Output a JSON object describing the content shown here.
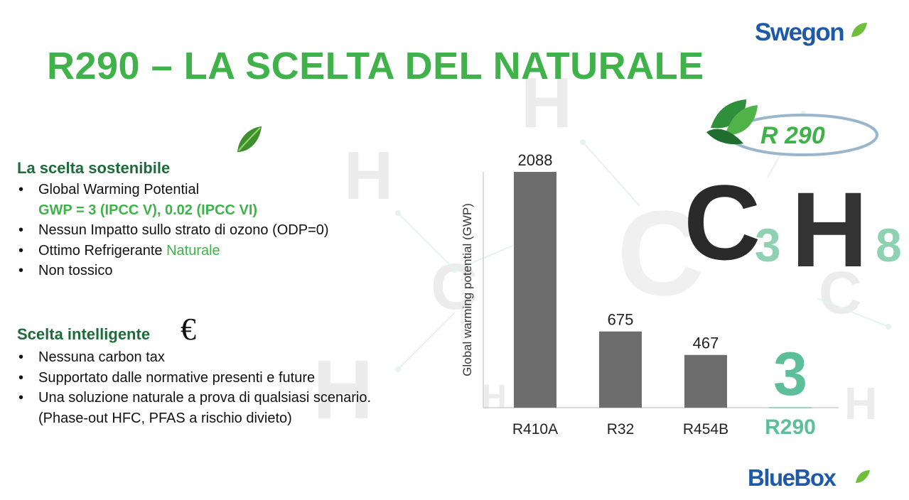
{
  "header": {
    "title": "R290 – LA SCELTA DEL NATURALE",
    "logo_top": "Swegon",
    "logo_bottom": "BlueBox"
  },
  "badge": {
    "text": "R 290"
  },
  "formula": {
    "c": "C",
    "sub3": "3",
    "h": "H",
    "sub8": "8"
  },
  "section1": {
    "heading": "La scelta sostenibile",
    "items": [
      {
        "text": "Global Warming Potential"
      },
      {
        "text": "GWP = 3 (IPCC V), 0.02 (IPCC VI)"
      },
      {
        "text": "Nessun Impatto sullo strato di ozono (ODP=0)"
      },
      {
        "prefix": "Ottimo Refrigerante ",
        "highlight": "Naturale"
      },
      {
        "text": "Non tossico"
      }
    ]
  },
  "section2": {
    "heading": "Scelta intelligente",
    "euro_symbol": "€",
    "items": [
      {
        "text": "Nessuna carbon tax"
      },
      {
        "text": "Supportato dalle normative presenti e future"
      },
      {
        "text": "Una soluzione naturale a prova di qualsiasi scenario."
      },
      {
        "text": "(Phase-out HFC, PFAS a rischio divieto)"
      }
    ]
  },
  "chart_data": {
    "type": "bar",
    "ylabel": "Global warming potential (GWP)",
    "categories": [
      "R410A",
      "R32",
      "R454B",
      "R290"
    ],
    "values": [
      2088,
      675,
      467,
      3
    ],
    "data_labels": [
      "2088",
      "675",
      "467",
      "3"
    ],
    "ylim": [
      0,
      2088
    ],
    "grid": false,
    "colors": {
      "bar": "#6e6d6d",
      "highlight": "#5cbf9a",
      "highlight_label": "#5cbf9a"
    }
  },
  "colors": {
    "title_green": "#3fb24a",
    "heading_green": "#1e6b3a",
    "brand_blue": "#1e5aa8"
  }
}
